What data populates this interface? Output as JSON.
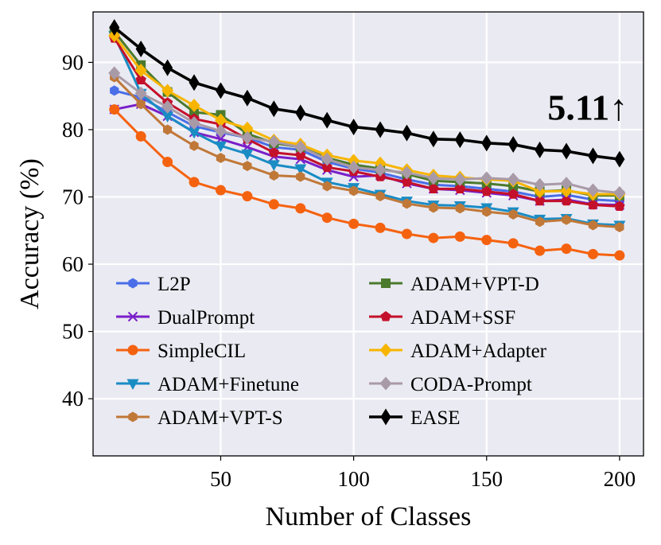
{
  "chart_data": {
    "type": "line",
    "xlabel": "Number of Classes",
    "ylabel": "Accuracy (%)",
    "xlim": [
      2,
      209
    ],
    "ylim": [
      31.5,
      97.5
    ],
    "xticks": [
      50,
      100,
      150,
      200
    ],
    "yticks": [
      40,
      50,
      60,
      70,
      80,
      90
    ],
    "grid": true,
    "legend_position": "lower-left, two columns",
    "annotation": {
      "text": "5.11↑",
      "x": 188,
      "y": 81.5
    },
    "x": [
      10,
      20,
      30,
      40,
      50,
      60,
      70,
      80,
      90,
      100,
      110,
      120,
      130,
      140,
      150,
      160,
      170,
      180,
      190,
      200
    ],
    "series": [
      {
        "name": "L2P",
        "color": "#4a6ee8",
        "marker": "hexagon",
        "values": [
          85.8,
          84.8,
          82.6,
          80.5,
          79.6,
          78.8,
          77.4,
          77.0,
          75.2,
          74.2,
          73.6,
          72.6,
          71.8,
          71.6,
          71.2,
          70.8,
          70.0,
          70.3,
          69.6,
          69.4
        ]
      },
      {
        "name": "DualPrompt",
        "color": "#7a1fc8",
        "marker": "x",
        "values": [
          83.0,
          83.8,
          82.0,
          79.6,
          78.6,
          77.4,
          76.0,
          75.6,
          74.0,
          73.0,
          73.2,
          72.0,
          71.2,
          71.0,
          70.6,
          70.2,
          69.4,
          69.6,
          68.9,
          68.8
        ]
      },
      {
        "name": "SimpleCIL",
        "color": "#f5620f",
        "marker": "circle",
        "values": [
          83.0,
          79.0,
          75.2,
          72.2,
          71.0,
          70.1,
          68.9,
          68.3,
          66.9,
          66.0,
          65.4,
          64.5,
          63.9,
          64.1,
          63.6,
          63.1,
          62.0,
          62.3,
          61.5,
          61.3
        ]
      },
      {
        "name": "ADAM+Finetune",
        "color": "#1a8cc4",
        "marker": "triangle-down",
        "values": [
          94.0,
          85.4,
          82.0,
          79.6,
          77.6,
          76.4,
          74.8,
          74.2,
          72.2,
          71.4,
          70.4,
          69.4,
          68.8,
          68.7,
          68.4,
          67.8,
          66.7,
          66.8,
          66.0,
          65.8
        ]
      },
      {
        "name": "ADAM+VPT-S",
        "color": "#c07838",
        "marker": "hexagon",
        "values": [
          87.8,
          83.8,
          80.0,
          77.6,
          75.8,
          74.6,
          73.2,
          73.0,
          71.6,
          70.9,
          70.1,
          69.0,
          68.4,
          68.3,
          67.8,
          67.4,
          66.3,
          66.6,
          65.8,
          65.5
        ]
      },
      {
        "name": "ADAM+VPT-D",
        "color": "#4b7a2d",
        "marker": "square",
        "values": [
          94.6,
          89.6,
          85.6,
          82.6,
          82.2,
          79.4,
          78.0,
          77.4,
          75.8,
          74.8,
          74.2,
          73.4,
          72.4,
          72.2,
          72.0,
          71.6,
          70.8,
          71.0,
          70.2,
          70.2
        ]
      },
      {
        "name": "ADAM+SSF",
        "color": "#c4102a",
        "marker": "pentagon",
        "values": [
          93.6,
          87.4,
          84.0,
          81.6,
          80.8,
          78.6,
          76.6,
          76.2,
          74.4,
          73.8,
          73.0,
          72.2,
          71.2,
          71.2,
          70.8,
          70.4,
          69.4,
          69.4,
          68.8,
          68.6
        ]
      },
      {
        "name": "ADAM+Adapter",
        "color": "#f7b500",
        "marker": "diamond",
        "values": [
          94.0,
          88.8,
          85.8,
          83.6,
          81.4,
          80.2,
          78.4,
          77.8,
          76.2,
          75.4,
          75.0,
          74.0,
          73.2,
          72.9,
          72.6,
          72.4,
          70.8,
          70.9,
          70.4,
          70.4
        ]
      },
      {
        "name": "CODA-Prompt",
        "color": "#a99aa7",
        "marker": "diamond",
        "values": [
          88.4,
          85.4,
          83.4,
          81.0,
          79.8,
          78.8,
          78.2,
          77.4,
          75.6,
          74.4,
          74.0,
          73.6,
          72.8,
          72.6,
          72.8,
          72.6,
          71.8,
          72.0,
          71.0,
          70.6
        ]
      },
      {
        "name": "EASE",
        "color": "#000000",
        "marker": "thin-diamond",
        "values": [
          95.2,
          92.0,
          89.2,
          87.0,
          85.8,
          84.7,
          83.1,
          82.5,
          81.4,
          80.4,
          80.0,
          79.5,
          78.6,
          78.5,
          78.0,
          77.8,
          77.0,
          76.8,
          76.1,
          75.6
        ]
      }
    ]
  }
}
